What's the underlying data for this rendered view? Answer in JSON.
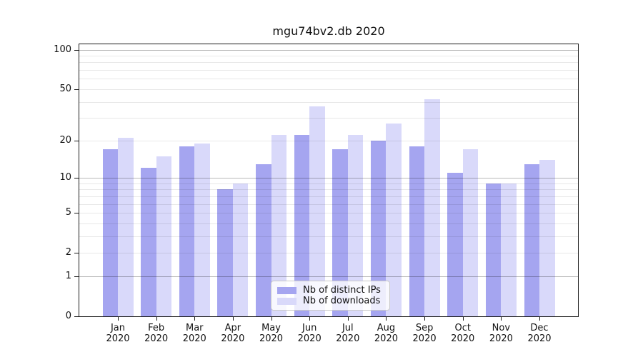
{
  "chart_data": {
    "type": "bar",
    "title": "mgu74bv2.db 2020",
    "categories": [
      "Jan",
      "Feb",
      "Mar",
      "Apr",
      "May",
      "Jun",
      "Jul",
      "Aug",
      "Sep",
      "Oct",
      "Nov",
      "Dec"
    ],
    "year": "2020",
    "series": [
      {
        "name": "Nb of distinct IPs",
        "color": "#a5a5f0",
        "values": [
          17,
          12,
          18,
          8,
          13,
          22,
          17,
          20,
          18,
          11,
          9,
          13
        ]
      },
      {
        "name": "Nb of downloads",
        "color": "#d9d9fa",
        "values": [
          21,
          15,
          19,
          9,
          22,
          37,
          22,
          27,
          42,
          17,
          9,
          14
        ]
      }
    ],
    "xlabel": "",
    "ylabel": "",
    "yscale": "log1p",
    "ylim": [
      0,
      110
    ],
    "ytick_labels": [
      "0",
      "1",
      "2",
      "5",
      "10",
      "20",
      "50",
      "100"
    ],
    "yticks": [
      0,
      1,
      2,
      5,
      10,
      20,
      50,
      100
    ],
    "gridlines": {
      "major": [
        1,
        10,
        100
      ],
      "minor": [
        2,
        3,
        4,
        5,
        6,
        7,
        8,
        9,
        20,
        30,
        40,
        50,
        60,
        70,
        80,
        90
      ]
    },
    "grid": true,
    "legend_position": "lower-center-inside",
    "colors": {
      "spine": "#1a1a1a",
      "background": "#ffffff",
      "grid_major": "rgba(0,0,0,0.28)",
      "grid_minor": "rgba(0,0,0,0.09)"
    }
  }
}
